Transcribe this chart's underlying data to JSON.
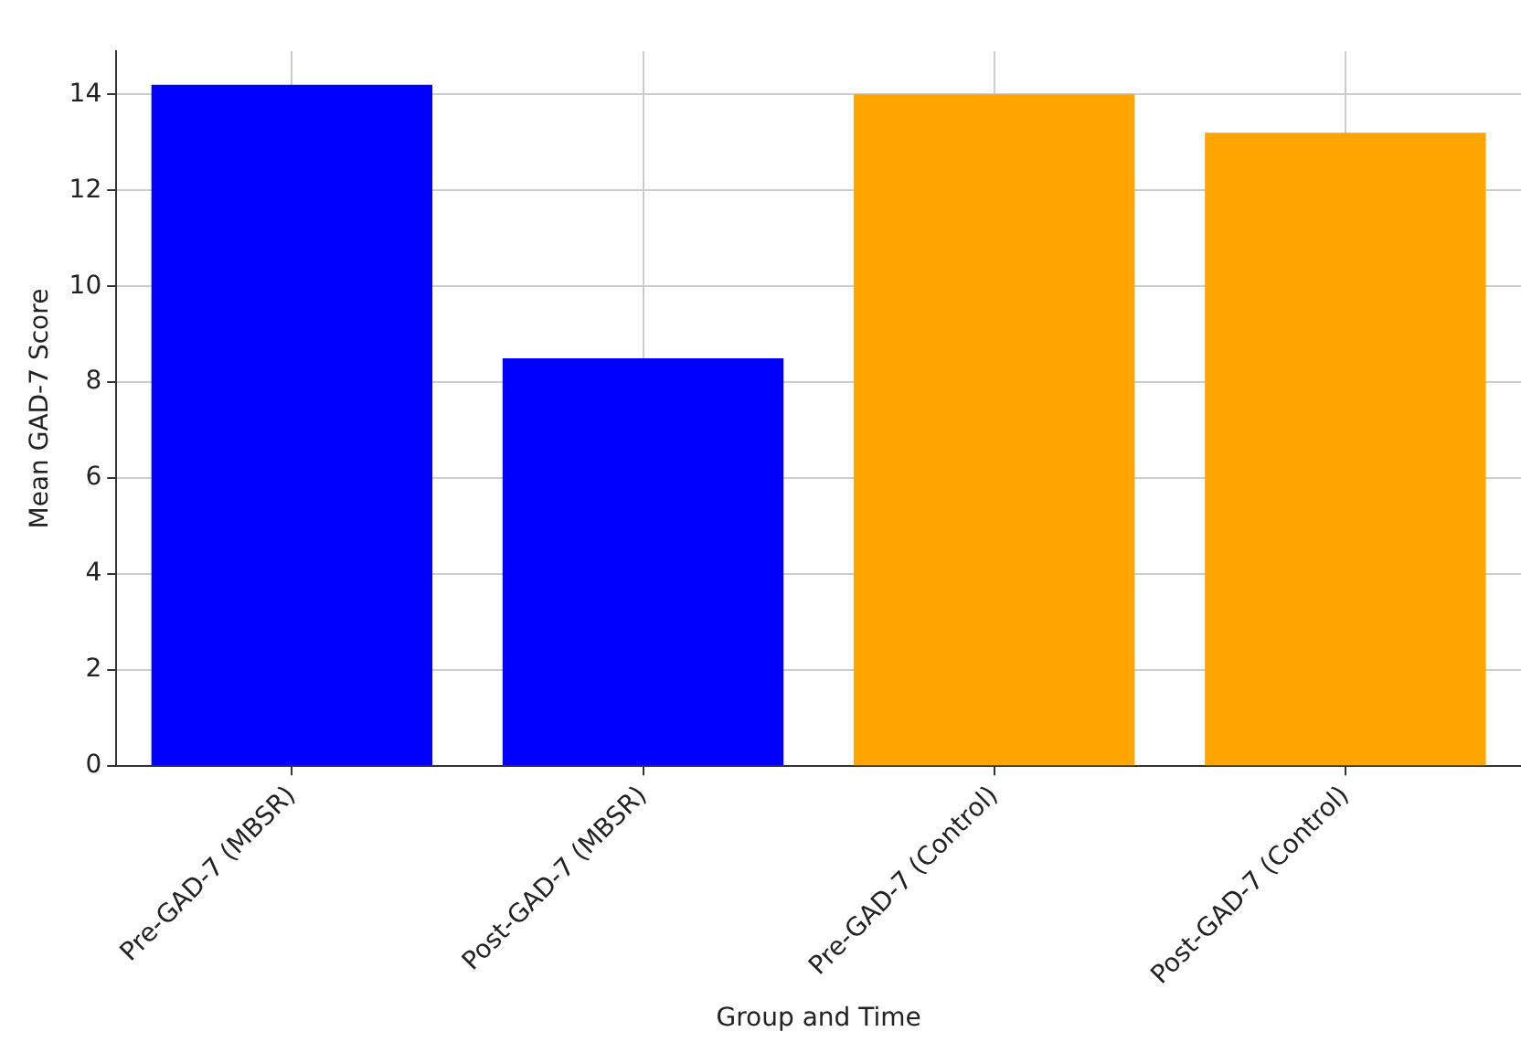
{
  "chart_data": {
    "type": "bar",
    "xlabel": "Group and Time",
    "ylabel": "Mean GAD-7 Score",
    "categories": [
      "Pre-GAD-7 (MBSR)",
      "Post-GAD-7 (MBSR)",
      "Pre-GAD-7 (Control)",
      "Post-GAD-7 (Control)"
    ],
    "values": [
      14.2,
      8.5,
      14.0,
      13.2
    ],
    "colors": [
      "#0000ff",
      "#0000ff",
      "#ffa500",
      "#ffa500"
    ],
    "ylim": [
      0,
      14.9
    ],
    "yticks": [
      0,
      2,
      4,
      6,
      8,
      10,
      12,
      14
    ],
    "grid": true
  }
}
